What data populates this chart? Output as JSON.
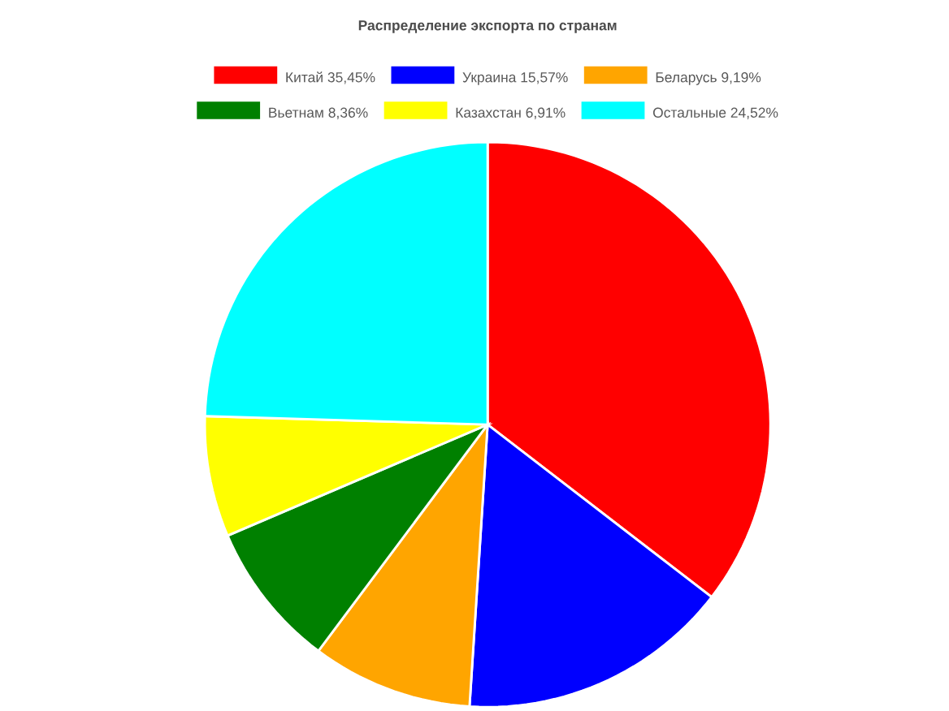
{
  "chart_data": {
    "type": "pie",
    "title": "Распределение экспорта по странам",
    "categories": [
      "Китай 35,45%",
      "Украина 15,57%",
      "Беларусь 9,19%",
      "Вьетнам 8,36%",
      "Казахстан 6,91%",
      "Остальные 24,52%"
    ],
    "values": [
      35.45,
      15.57,
      9.19,
      8.36,
      6.91,
      24.52
    ],
    "colors": [
      "#ff0000",
      "#0000ff",
      "#ffa500",
      "#008000",
      "#ffff00",
      "#00ffff"
    ],
    "legend": "top"
  }
}
